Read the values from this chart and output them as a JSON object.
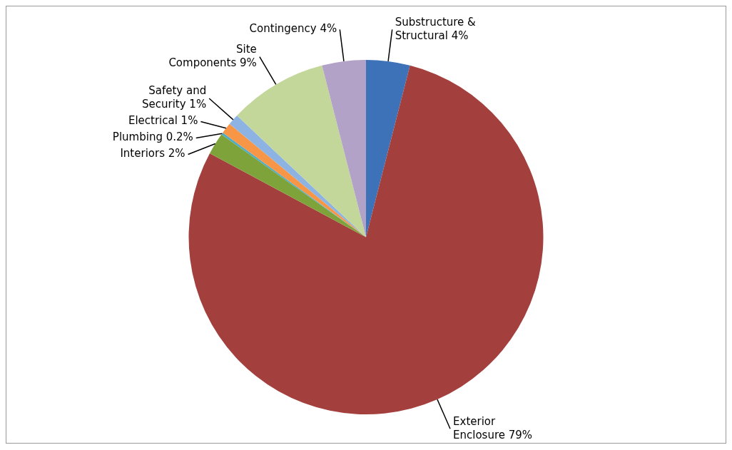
{
  "chart_data": {
    "type": "pie",
    "categories": [
      "Substructure & Structural",
      "Exterior Enclosure",
      "Interiors",
      "Plumbing",
      "Electrical",
      "Safety and Security",
      "Site Components",
      "Contingency"
    ],
    "values": [
      4,
      79,
      2,
      0.2,
      1,
      1,
      9,
      4
    ],
    "value_labels": [
      "4%",
      "79%",
      "2%",
      "0.2%",
      "1%",
      "1%",
      "9%",
      "4%"
    ],
    "colors": [
      "#3d72b8",
      "#a3403d",
      "#7ea33a",
      "#4bacc6",
      "#f79646",
      "#8db3e2",
      "#c4d79b",
      "#b3a2c7"
    ],
    "legend": false
  }
}
